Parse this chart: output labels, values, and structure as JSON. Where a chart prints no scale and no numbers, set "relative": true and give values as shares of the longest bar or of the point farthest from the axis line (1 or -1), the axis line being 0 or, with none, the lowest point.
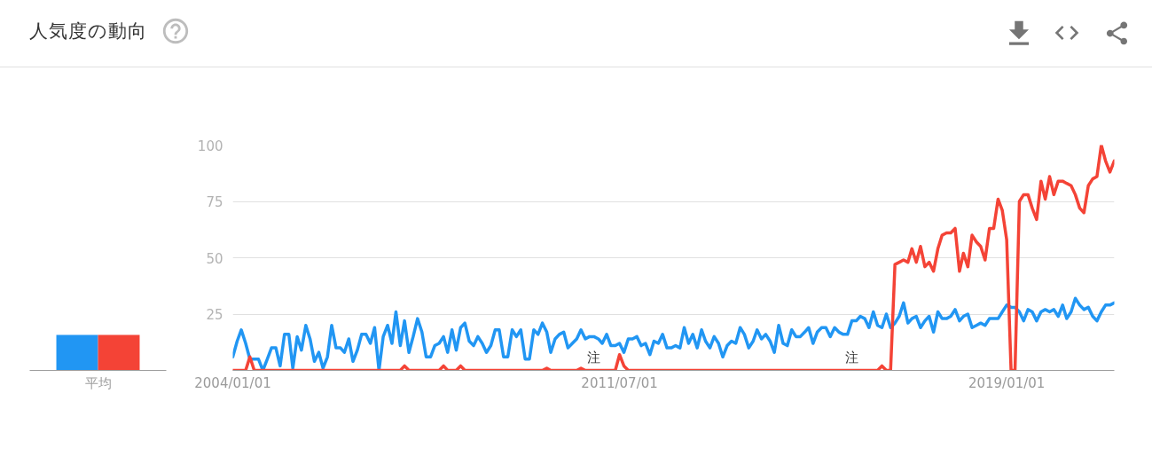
{
  "chart_data": [
    {
      "type": "bar",
      "title": "人気度の動向",
      "categories": [
        "平均"
      ],
      "relative": true,
      "series": [
        {
          "color": "#2196f3",
          "values": [
            1
          ]
        },
        {
          "color": "#f44336",
          "values": [
            1
          ]
        }
      ]
    },
    {
      "type": "line",
      "x": [
        "2004-01",
        "2004-02",
        "2004-03",
        "2004-04",
        "2004-05",
        "2004-06",
        "2004-07",
        "2004-08",
        "2004-09",
        "2004-10",
        "2004-11",
        "2004-12",
        "2005-01",
        "2005-02",
        "2005-03",
        "2005-04",
        "2005-05",
        "2005-06",
        "2005-07",
        "2005-08",
        "2005-09",
        "2005-10",
        "2005-11",
        "2005-12",
        "2006-01",
        "2006-02",
        "2006-03",
        "2006-04",
        "2006-05",
        "2006-06",
        "2006-07",
        "2006-08",
        "2006-09",
        "2006-10",
        "2006-11",
        "2006-12",
        "2007-01",
        "2007-02",
        "2007-03",
        "2007-04",
        "2007-05",
        "2007-06",
        "2007-07",
        "2007-08",
        "2007-09",
        "2007-10",
        "2007-11",
        "2007-12",
        "2008-01",
        "2008-02",
        "2008-03",
        "2008-04",
        "2008-05",
        "2008-06",
        "2008-07",
        "2008-08",
        "2008-09",
        "2008-10",
        "2008-11",
        "2008-12",
        "2009-01",
        "2009-02",
        "2009-03",
        "2009-04",
        "2009-05",
        "2009-06",
        "2009-07",
        "2009-08",
        "2009-09",
        "2009-10",
        "2009-11",
        "2009-12",
        "2010-01",
        "2010-02",
        "2010-03",
        "2010-04",
        "2010-05",
        "2010-06",
        "2010-07",
        "2010-08",
        "2010-09",
        "2010-10",
        "2010-11",
        "2010-12",
        "2011-01",
        "2011-02",
        "2011-03",
        "2011-04",
        "2011-05",
        "2011-06",
        "2011-07",
        "2011-08",
        "2011-09",
        "2011-10",
        "2011-11",
        "2011-12",
        "2012-01",
        "2012-02",
        "2012-03",
        "2012-04",
        "2012-05",
        "2012-06",
        "2012-07",
        "2012-08",
        "2012-09",
        "2012-10",
        "2012-11",
        "2012-12",
        "2013-01",
        "2013-02",
        "2013-03",
        "2013-04",
        "2013-05",
        "2013-06",
        "2013-07",
        "2013-08",
        "2013-09",
        "2013-10",
        "2013-11",
        "2013-12",
        "2014-01",
        "2014-02",
        "2014-03",
        "2014-04",
        "2014-05",
        "2014-06",
        "2014-07",
        "2014-08",
        "2014-09",
        "2014-10",
        "2014-11",
        "2014-12",
        "2015-01",
        "2015-02",
        "2015-03",
        "2015-04",
        "2015-05",
        "2015-06",
        "2015-07",
        "2015-08",
        "2015-09",
        "2015-10",
        "2015-11",
        "2015-12",
        "2016-01",
        "2016-02",
        "2016-03",
        "2016-04",
        "2016-05",
        "2016-06",
        "2016-07",
        "2016-08",
        "2016-09",
        "2016-10",
        "2016-11",
        "2016-12",
        "2017-01",
        "2017-02",
        "2017-03",
        "2017-04",
        "2017-05",
        "2017-06",
        "2017-07",
        "2017-08",
        "2017-09",
        "2017-10",
        "2017-11",
        "2017-12",
        "2018-01",
        "2018-02",
        "2018-03",
        "2018-04",
        "2018-05",
        "2018-06",
        "2018-07",
        "2018-08",
        "2018-09",
        "2018-10",
        "2018-11",
        "2018-12",
        "2019-01",
        "2019-02",
        "2019-03",
        "2019-04",
        "2019-05",
        "2019-06",
        "2019-07",
        "2019-08",
        "2019-09",
        "2019-10",
        "2019-11",
        "2019-12",
        "2020-01",
        "2020-02",
        "2020-03",
        "2020-04",
        "2020-05",
        "2020-06",
        "2020-07",
        "2020-08",
        "2020-09",
        "2020-10",
        "2020-11",
        "2020-12",
        "2021-01",
        "2021-02"
      ],
      "series": [
        {
          "color": "#2196f3",
          "values": [
            6,
            13,
            18,
            12,
            5,
            5,
            5,
            0,
            5,
            10,
            10,
            2,
            16,
            16,
            1,
            15,
            9,
            20,
            14,
            4,
            8,
            1,
            6,
            20,
            10,
            10,
            8,
            14,
            4,
            9,
            16,
            16,
            12,
            19,
            0,
            15,
            20,
            12,
            26,
            11,
            22,
            8,
            15,
            23,
            17,
            6,
            6,
            11,
            12,
            15,
            8,
            18,
            9,
            19,
            21,
            13,
            11,
            15,
            12,
            8,
            11,
            18,
            18,
            6,
            6,
            18,
            15,
            18,
            5,
            5,
            18,
            16,
            21,
            17,
            8,
            14,
            16,
            17,
            10,
            12,
            14,
            18,
            14,
            15,
            15,
            14,
            12,
            16,
            11,
            11,
            12,
            8,
            14,
            14,
            15,
            11,
            12,
            7,
            13,
            12,
            16,
            10,
            10,
            11,
            10,
            19,
            12,
            16,
            10,
            18,
            13,
            10,
            15,
            12,
            6,
            11,
            13,
            12,
            19,
            16,
            10,
            13,
            18,
            14,
            16,
            13,
            8,
            20,
            12,
            11,
            18,
            15,
            15,
            17,
            19,
            12,
            17,
            19,
            19,
            15,
            19,
            17,
            16,
            16,
            22,
            22,
            24,
            23,
            19,
            26,
            20,
            19,
            25,
            19,
            21,
            24,
            30,
            21,
            23,
            24,
            19,
            22,
            24,
            17,
            26,
            23,
            23,
            24,
            27,
            22,
            24,
            25,
            19,
            20,
            21,
            20,
            23,
            23,
            23,
            26,
            29,
            28,
            28,
            26,
            22,
            27,
            26,
            22,
            26,
            27,
            26,
            27,
            24,
            29,
            23,
            26,
            32,
            29,
            27,
            28,
            24,
            22,
            26,
            29,
            29,
            30
          ]
        },
        {
          "color": "#f44336",
          "x": [
            "2004-01",
            "2004-04",
            "2004-05",
            "2004-06",
            "2007-04",
            "2007-05",
            "2007-06",
            "2008-01",
            "2008-02",
            "2008-03",
            "2008-05",
            "2008-06",
            "2008-07",
            "2010-01",
            "2010-02",
            "2010-03",
            "2010-09",
            "2010-10",
            "2010-11",
            "2011-06",
            "2011-07",
            "2011-08",
            "2011-09",
            "2016-07",
            "2016-08",
            "2016-09",
            "2016-10",
            "2016-11",
            "2017-01",
            "2017-02",
            "2017-03",
            "2017-04",
            "2017-05",
            "2017-06",
            "2017-07",
            "2017-08",
            "2017-09",
            "2017-10",
            "2017-11",
            "2017-12",
            "2018-01",
            "2018-02",
            "2018-03",
            "2018-04",
            "2018-05",
            "2018-06",
            "2018-07",
            "2018-08",
            "2018-09",
            "2018-10",
            "2018-11",
            "2018-12",
            "2019-01",
            "2019-02",
            "2019-03",
            "2019-04",
            "2019-05",
            "2019-06",
            "2019-07",
            "2019-08",
            "2019-09",
            "2019-10",
            "2019-11",
            "2019-12",
            "2020-01",
            "2020-02",
            "2020-03",
            "2020-04",
            "2020-05",
            "2020-06",
            "2020-07",
            "2020-08",
            "2020-09",
            "2020-10",
            "2020-11",
            "2020-12",
            "2021-01",
            "2021-02"
          ],
          "values": [
            0,
            0,
            6,
            0,
            0,
            2,
            0,
            0,
            2,
            0,
            0,
            2,
            0,
            0,
            1,
            0,
            0,
            1,
            0,
            0,
            7,
            2,
            0,
            0,
            2,
            0,
            0,
            47,
            49,
            48,
            54,
            48,
            55,
            46,
            48,
            44,
            54,
            60,
            61,
            61,
            63,
            44,
            52,
            46,
            60,
            57,
            55,
            49,
            63,
            63,
            76,
            71,
            58,
            0,
            0,
            75,
            78,
            78,
            72,
            67,
            84,
            76,
            86,
            78,
            84,
            84,
            83,
            82,
            78,
            72,
            70,
            82,
            85,
            86,
            100,
            93,
            88,
            93
          ]
        }
      ],
      "xlim": [
        "2004-01",
        "2021-02"
      ],
      "ylim": [
        0,
        100
      ],
      "xticks": [
        {
          "value": "2004-01-01",
          "label": "2004/01/01"
        },
        {
          "value": "2011-07-01",
          "label": "2011/07/01"
        },
        {
          "value": "2019-01-01",
          "label": "2019/01/01"
        }
      ],
      "yticks": [
        {
          "value": 0,
          "label": null
        },
        25,
        50,
        75,
        100
      ],
      "grid": "y",
      "annotations": [
        {
          "text": "注",
          "x": "2011-01",
          "y": 0
        },
        {
          "text": "注",
          "x": "2016-01",
          "y": 0
        }
      ]
    }
  ]
}
